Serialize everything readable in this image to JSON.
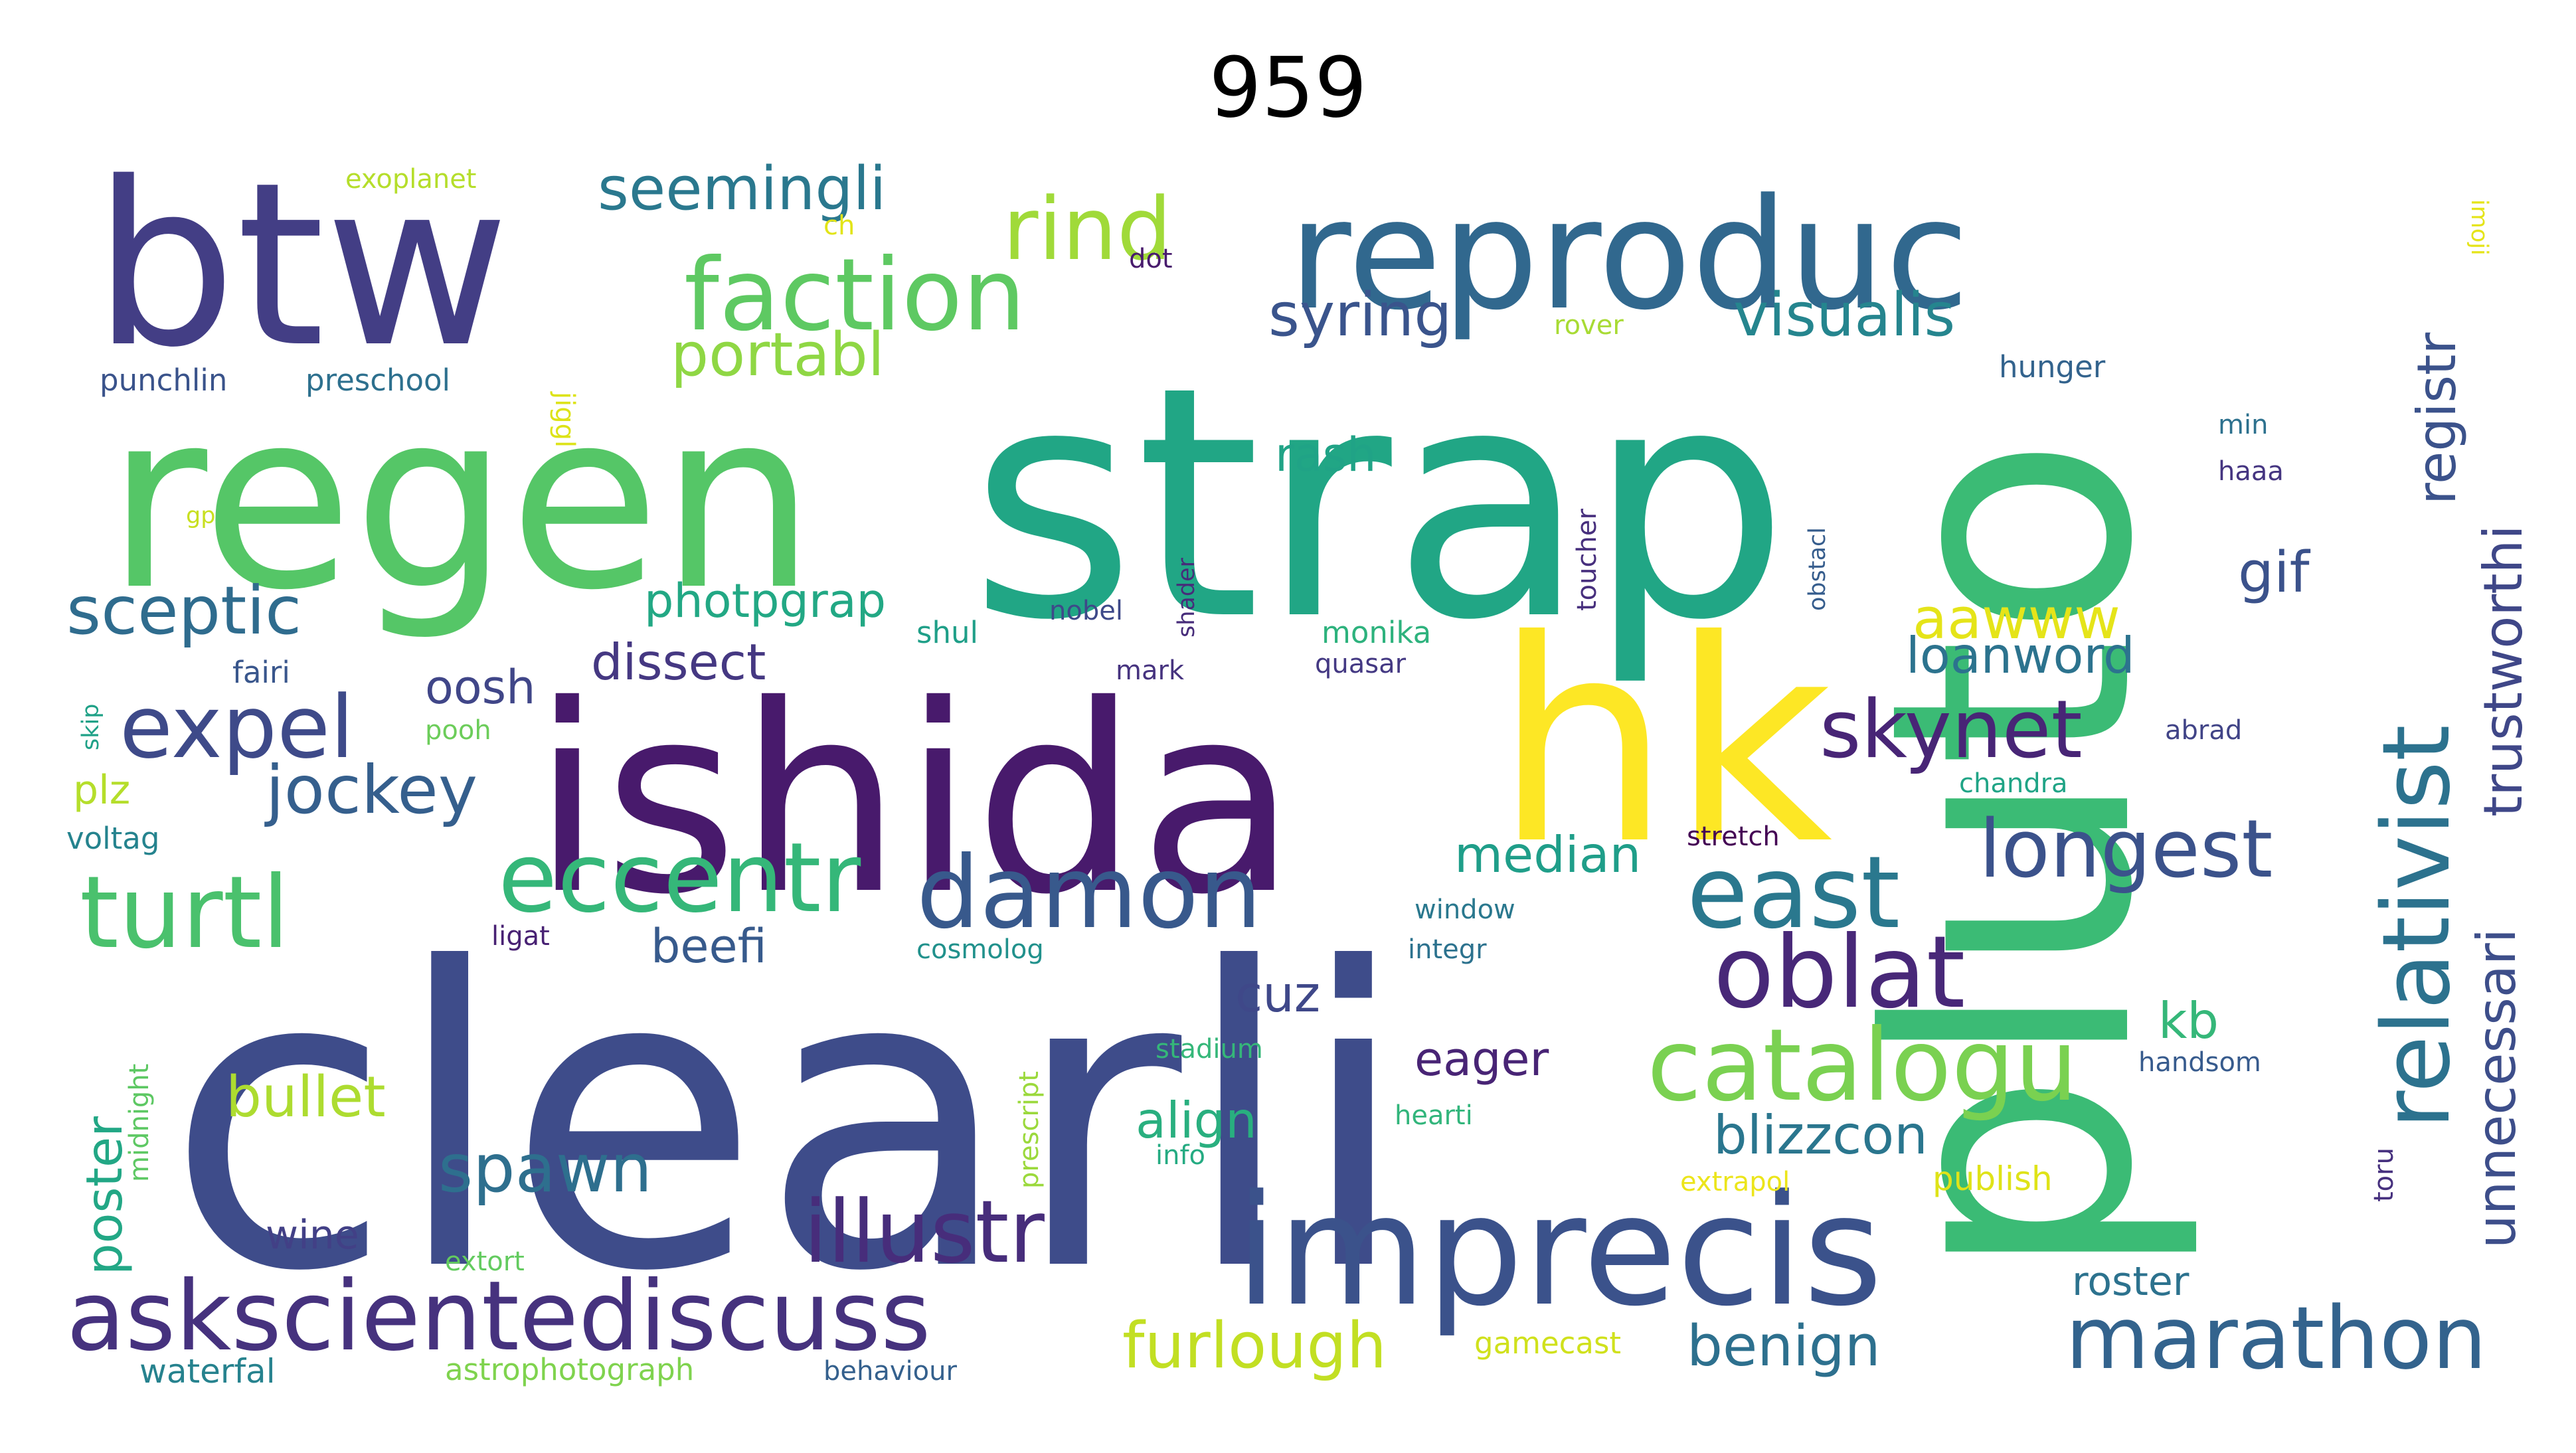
{
  "title": "959",
  "words": [
    {
      "text": "strap",
      "color": "#21a685"
    },
    {
      "text": "clearli",
      "color": "#3e4c8a"
    },
    {
      "text": "regen",
      "color": "#55c667"
    },
    {
      "text": "ishida",
      "color": "#481a6c"
    },
    {
      "text": "pluto",
      "color": "#3bbb75"
    },
    {
      "text": "btw",
      "color": "#433e85"
    },
    {
      "text": "hk",
      "color": "#fde725"
    },
    {
      "text": "reproduc",
      "color": "#31688e"
    },
    {
      "text": "imprecis",
      "color": "#3b528b"
    },
    {
      "text": "askscientediscuss",
      "color": "#46327e"
    },
    {
      "text": "faction",
      "color": "#5ec962"
    },
    {
      "text": "eccentr",
      "color": "#35b779"
    },
    {
      "text": "damon",
      "color": "#38598c"
    },
    {
      "text": "expel",
      "color": "#3e4a89"
    },
    {
      "text": "turtl",
      "color": "#4ac16d"
    },
    {
      "text": "catalogu",
      "color": "#7ad151"
    },
    {
      "text": "east",
      "color": "#2a788e"
    },
    {
      "text": "oblat",
      "color": "#482878"
    },
    {
      "text": "marathon",
      "color": "#33638d"
    },
    {
      "text": "relativist",
      "color": "#2c728e"
    },
    {
      "text": "illustr",
      "color": "#472d7b"
    },
    {
      "text": "rind",
      "color": "#a0da39"
    },
    {
      "text": "longest",
      "color": "#3b528b"
    },
    {
      "text": "skynet",
      "color": "#482576"
    },
    {
      "text": "sceptic",
      "color": "#2f6c8e"
    },
    {
      "text": "jockey",
      "color": "#355f8d"
    },
    {
      "text": "spawn",
      "color": "#2e6f8e"
    },
    {
      "text": "seemingli",
      "color": "#2a788e"
    },
    {
      "text": "syring",
      "color": "#3a548c"
    },
    {
      "text": "visualis",
      "color": "#25858e"
    },
    {
      "text": "portabl",
      "color": "#8fd744"
    },
    {
      "text": "registr",
      "color": "#3b528b"
    },
    {
      "text": "trustworthi",
      "color": "#3f4788"
    },
    {
      "text": "unnecessari",
      "color": "#3d4e8a"
    },
    {
      "text": "furlough",
      "color": "#c2df23"
    },
    {
      "text": "benign",
      "color": "#2d708e"
    },
    {
      "text": "bullet",
      "color": "#addc30"
    },
    {
      "text": "blizzcon",
      "color": "#2a768e"
    },
    {
      "text": "median",
      "color": "#1f9e89"
    },
    {
      "text": "gif",
      "color": "#3b528b"
    },
    {
      "text": "aawww",
      "color": "#e5e419"
    },
    {
      "text": "loanword",
      "color": "#2c738e"
    },
    {
      "text": "dissect",
      "color": "#453882"
    },
    {
      "text": "oosh",
      "color": "#404688"
    },
    {
      "text": "photpgrap",
      "color": "#22a884"
    },
    {
      "text": "rash",
      "color": "#20a386"
    },
    {
      "text": "cuz",
      "color": "#3f4889"
    },
    {
      "text": "beefi",
      "color": "#375a8c"
    },
    {
      "text": "eager",
      "color": "#482475"
    },
    {
      "text": "align",
      "color": "#29af7f"
    },
    {
      "text": "kb",
      "color": "#35b779"
    },
    {
      "text": "poster",
      "color": "#22a785"
    },
    {
      "text": "wine",
      "color": "#424086"
    },
    {
      "text": "plz",
      "color": "#b5de2b"
    },
    {
      "text": "roster",
      "color": "#2c728e"
    },
    {
      "text": "exoplanet",
      "color": "#b5de2b"
    },
    {
      "text": "ch",
      "color": "#e2e418"
    },
    {
      "text": "dot",
      "color": "#481b6d"
    },
    {
      "text": "rover",
      "color": "#a8db34"
    },
    {
      "text": "jiggl",
      "color": "#dde318"
    },
    {
      "text": "imoji",
      "color": "#e5e419"
    },
    {
      "text": "hunger",
      "color": "#33638d"
    },
    {
      "text": "min",
      "color": "#2d718e"
    },
    {
      "text": "haaa",
      "color": "#453581"
    },
    {
      "text": "punchlin",
      "color": "#3a538b"
    },
    {
      "text": "preschool",
      "color": "#2d708e"
    },
    {
      "text": "gp",
      "color": "#c8e020"
    },
    {
      "text": "toucher",
      "color": "#472f7d"
    },
    {
      "text": "obstacl",
      "color": "#365d8d"
    },
    {
      "text": "shader",
      "color": "#472c7a"
    },
    {
      "text": "nobel",
      "color": "#3e4989"
    },
    {
      "text": "shul",
      "color": "#1f9f88"
    },
    {
      "text": "monika",
      "color": "#2db27d"
    },
    {
      "text": "quasar",
      "color": "#443983"
    },
    {
      "text": "mark",
      "color": "#46337f"
    },
    {
      "text": "fairi",
      "color": "#39568c"
    },
    {
      "text": "skip",
      "color": "#1fa187"
    },
    {
      "text": "pooh",
      "color": "#6ccd5a"
    },
    {
      "text": "abrad",
      "color": "#414487"
    },
    {
      "text": "chandra",
      "color": "#20a486"
    },
    {
      "text": "voltag",
      "color": "#25838e"
    },
    {
      "text": "stretch",
      "color": "#440154"
    },
    {
      "text": "window",
      "color": "#2a788e"
    },
    {
      "text": "ligat",
      "color": "#482173"
    },
    {
      "text": "cosmolog",
      "color": "#21918c"
    },
    {
      "text": "integr",
      "color": "#2c728e"
    },
    {
      "text": "midnight",
      "color": "#5dc863"
    },
    {
      "text": "prescript",
      "color": "#9bd93c"
    },
    {
      "text": "stadium",
      "color": "#35b779"
    },
    {
      "text": "handsom",
      "color": "#375b8d"
    },
    {
      "text": "hearti",
      "color": "#31b57b"
    },
    {
      "text": "info",
      "color": "#25ab82"
    },
    {
      "text": "toru",
      "color": "#46307e"
    },
    {
      "text": "extrapol",
      "color": "#ece51b"
    },
    {
      "text": "publish",
      "color": "#dfe318"
    },
    {
      "text": "extort",
      "color": "#63cb5f"
    },
    {
      "text": "waterfal",
      "color": "#26828e"
    },
    {
      "text": "astrophotograph",
      "color": "#7fd34e"
    },
    {
      "text": "behaviour",
      "color": "#34608d"
    },
    {
      "text": "gamecast",
      "color": "#d0e11c"
    }
  ]
}
